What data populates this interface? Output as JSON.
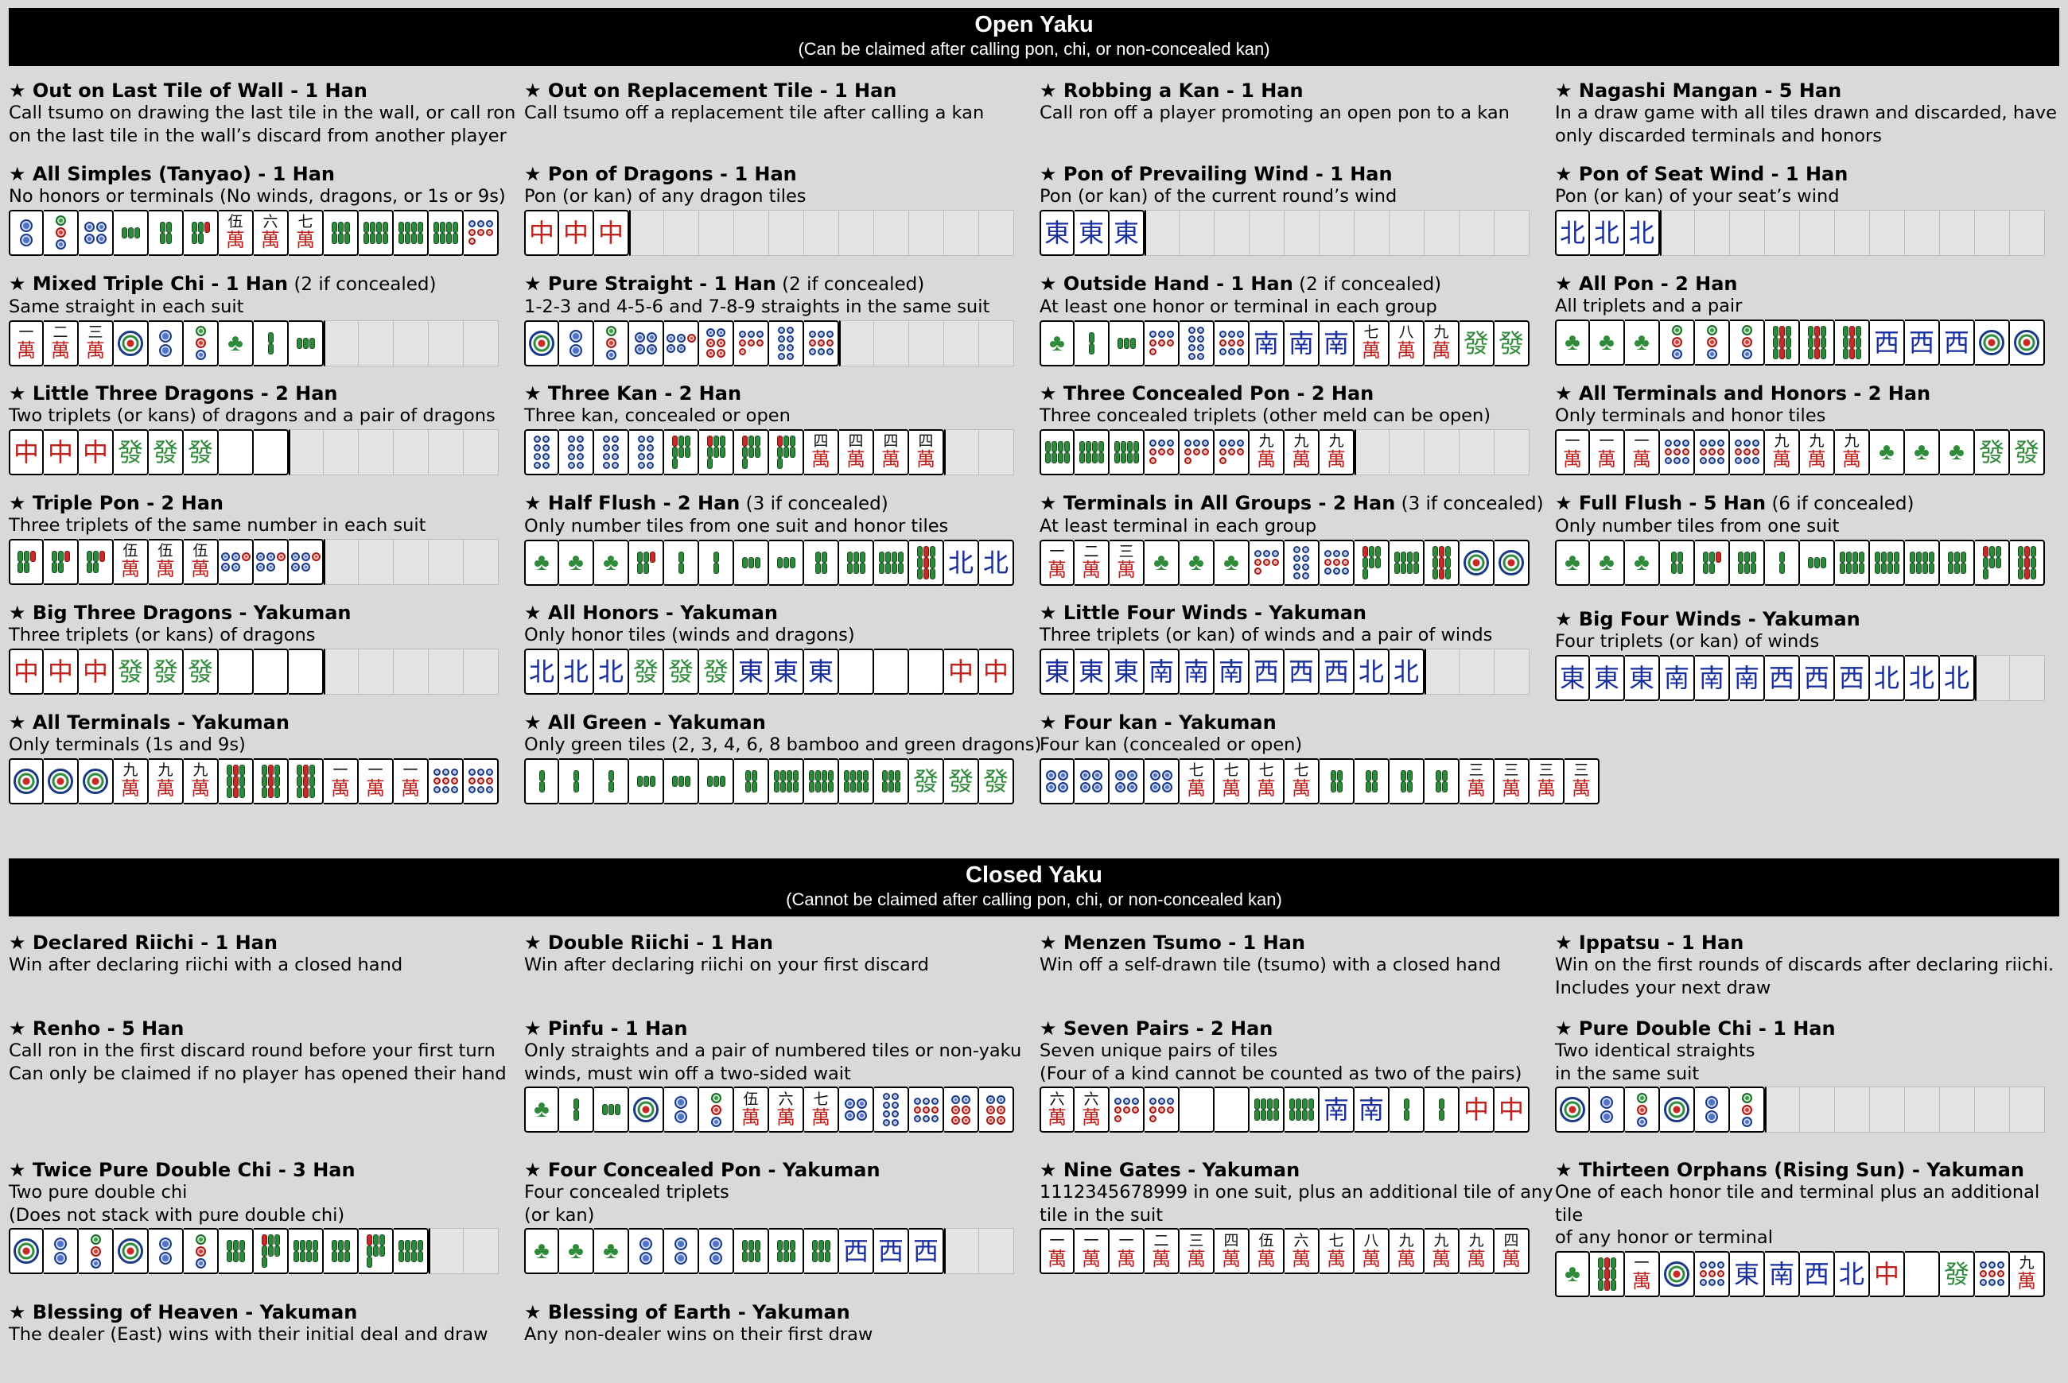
{
  "open": {
    "title": "Open Yaku",
    "subtitle": "(Can be claimed after calling pon, chi, or non-concealed kan)"
  },
  "closed": {
    "title": "Closed Yaku",
    "subtitle": "(Cannot be claimed after calling pon, chi, or non-concealed kan)"
  },
  "star": "★",
  "cards": [
    {
      "title": "Out on Last Tile of Wall - 1 Han",
      "desc": "Call tsumo on drawing the last tile in the wall, or call ron\non the last tile in the wall’s discard from another player",
      "tiles": []
    },
    {
      "title": "Out on Replacement Tile - 1 Han",
      "desc": "Call tsumo off a replacement tile after calling a kan",
      "tiles": []
    },
    {
      "title": "Robbing a Kan - 1 Han",
      "desc": "Call ron off a player promoting an open pon to a kan",
      "tiles": []
    },
    {
      "title": "Nagashi Mangan - 5 Han",
      "desc": "In a draw game with all tiles drawn and discarded, have\nonly discarded terminals and honors",
      "tiles": []
    },
    {
      "title": "All Simples (Tanyao) - 1 Han",
      "desc": "No honors or terminals (No winds, dragons, or 1s or 9s)",
      "tiles": [
        "p2",
        "p3",
        "p4",
        "s3",
        "s4",
        "s5",
        "m5",
        "m6",
        "m7",
        "s6",
        "s8",
        "s8",
        "s8",
        "p7"
      ]
    },
    {
      "title": "Pon of Dragons - 1 Han",
      "desc": "Pon (or kan) of any dragon tiles",
      "tiles": [
        "dr",
        "dr",
        "dr",
        "e",
        "e",
        "e",
        "e",
        "e",
        "e",
        "e",
        "e",
        "e",
        "e",
        "e"
      ]
    },
    {
      "title": "Pon of Prevailing Wind - 1 Han",
      "desc": "Pon (or kan) of the current round’s wind",
      "tiles": [
        "we",
        "we",
        "we",
        "e",
        "e",
        "e",
        "e",
        "e",
        "e",
        "e",
        "e",
        "e",
        "e",
        "e"
      ]
    },
    {
      "title": "Pon of Seat Wind - 1 Han",
      "desc": "Pon (or kan) of your seat’s wind",
      "tiles": [
        "wn",
        "wn",
        "wn",
        "e",
        "e",
        "e",
        "e",
        "e",
        "e",
        "e",
        "e",
        "e",
        "e",
        "e"
      ]
    },
    {
      "title": "Mixed Triple Chi - 1 Han",
      "suffix": " (2 if concealed)",
      "desc": "Same straight in each suit",
      "tiles": [
        "m1",
        "m2",
        "m3",
        "p1",
        "p2",
        "p3",
        "s1",
        "s2",
        "s3",
        "e",
        "e",
        "e",
        "e",
        "e"
      ]
    },
    {
      "title": "Pure Straight - 1 Han",
      "suffix": " (2 if concealed)",
      "desc": "1-2-3 and 4-5-6 and 7-8-9 straights in the same suit",
      "tiles": [
        "p1",
        "p2",
        "p3",
        "p4",
        "p5",
        "p6",
        "p7",
        "p8",
        "p9",
        "e",
        "e",
        "e",
        "e",
        "e"
      ]
    },
    {
      "title": "Outside Hand - 1 Han",
      "suffix": " (2 if concealed)",
      "desc": "At least one honor or terminal in each group",
      "tiles": [
        "s1",
        "s2",
        "s3",
        "p7",
        "p8",
        "p9",
        "ws",
        "ws",
        "ws",
        "m7",
        "m8",
        "m9",
        "dg",
        "dg"
      ]
    },
    {
      "title": "All Pon - 2 Han",
      "desc": "All triplets and a pair",
      "tiles": [
        "s1",
        "s1",
        "s1",
        "p3",
        "p3",
        "p3",
        "s9",
        "s9",
        "s9",
        "ww",
        "ww",
        "ww",
        "p1",
        "p1"
      ]
    },
    {
      "title": "Little Three Dragons - 2 Han",
      "desc": "Two triplets (or kans) of dragons and a pair of dragons",
      "tiles": [
        "dr",
        "dr",
        "dr",
        "dg",
        "dg",
        "dg",
        "dw",
        "dw",
        "e",
        "e",
        "e",
        "e",
        "e",
        "e"
      ]
    },
    {
      "title": "Three Kan - 2 Han",
      "desc": "Three kan, concealed or open",
      "tiles": [
        "p8",
        "p8",
        "p8",
        "p8",
        "s7",
        "s7",
        "s7",
        "s7",
        "m4",
        "m4",
        "m4",
        "m4",
        "e",
        "e"
      ]
    },
    {
      "title": "Three Concealed Pon - 2 Han",
      "desc": "Three concealed triplets (other meld can be open)",
      "tiles": [
        "s8",
        "s8",
        "s8",
        "p7",
        "p7",
        "p7",
        "m9",
        "m9",
        "m9",
        "e",
        "e",
        "e",
        "e",
        "e"
      ]
    },
    {
      "title": "All Terminals and Honors - 2 Han",
      "desc": "Only terminals and honor tiles",
      "tiles": [
        "m1",
        "m1",
        "m1",
        "p9",
        "p9",
        "p9",
        "m9",
        "m9",
        "m9",
        "s1",
        "s1",
        "s1",
        "dg",
        "dg"
      ]
    },
    {
      "title": "Triple Pon - 2 Han",
      "desc": "Three triplets of the same number in each suit",
      "tiles": [
        "s5",
        "s5",
        "s5",
        "m5",
        "m5",
        "m5",
        "p5",
        "p5",
        "p5",
        "e",
        "e",
        "e",
        "e",
        "e"
      ]
    },
    {
      "title": "Half Flush - 2 Han",
      "suffix": " (3 if concealed)",
      "desc": "Only number tiles from one suit and honor tiles",
      "tiles": [
        "s1",
        "s1",
        "s1",
        "s5",
        "s2",
        "s2",
        "s3",
        "s3",
        "s4",
        "s6",
        "s8",
        "s9",
        "wn",
        "wn"
      ]
    },
    {
      "title": "Terminals in All Groups - 2 Han",
      "suffix": " (3 if concealed)",
      "desc": "At least terminal in each group",
      "tiles": [
        "m1",
        "m2",
        "m3",
        "s1",
        "s1",
        "s1",
        "p7",
        "p8",
        "p9",
        "s7",
        "s8",
        "s9",
        "p1",
        "p1"
      ]
    },
    {
      "title": "Full Flush - 5 Han",
      "suffix": " (6 if concealed)",
      "desc": "Only number tiles from one suit",
      "tiles": [
        "s1",
        "s1",
        "s1",
        "s4",
        "s5",
        "s6",
        "s2",
        "s3",
        "s8",
        "s8",
        "s8",
        "s6",
        "s7",
        "s9"
      ]
    },
    {
      "title": "Big Three Dragons - Yakuman",
      "desc": "Three triplets (or kans) of dragons",
      "tiles": [
        "dr",
        "dr",
        "dr",
        "dg",
        "dg",
        "dg",
        "dw",
        "dw",
        "dw",
        "e",
        "e",
        "e",
        "e",
        "e"
      ]
    },
    {
      "title": "All Honors - Yakuman",
      "desc": "Only honor tiles (winds and dragons)",
      "tiles": [
        "wn",
        "wn",
        "wn",
        "dg",
        "dg",
        "dg",
        "we",
        "we",
        "we",
        "dw",
        "dw",
        "dw",
        "dr",
        "dr"
      ]
    },
    {
      "title": "Little Four Winds - Yakuman",
      "desc": "Three triplets (or kan) of winds and a pair of winds",
      "tiles": [
        "we",
        "we",
        "we",
        "ws",
        "ws",
        "ws",
        "ww",
        "ww",
        "ww",
        "wn",
        "wn",
        "e",
        "e",
        "e"
      ]
    },
    {
      "title": "Big Four Winds - Yakuman",
      "desc": "Four triplets (or kan) of winds",
      "tiles": [
        "we",
        "we",
        "we",
        "ws",
        "ws",
        "ws",
        "ww",
        "ww",
        "ww",
        "wn",
        "wn",
        "wn",
        "e",
        "e"
      ]
    },
    {
      "title": "All Terminals - Yakuman",
      "desc": "Only terminals (1s and 9s)",
      "tiles": [
        "p1",
        "p1",
        "p1",
        "m9",
        "m9",
        "m9",
        "s9",
        "s9",
        "s9",
        "m1",
        "m1",
        "m1",
        "p9",
        "p9"
      ]
    },
    {
      "title": "All Green - Yakuman",
      "desc": "Only green tiles (2, 3, 4, 6, 8 bamboo and green dragons)",
      "tiles": [
        "s2",
        "s2",
        "s2",
        "s3",
        "s3",
        "s3",
        "s4",
        "s8",
        "s8",
        "s8",
        "s6",
        "dg",
        "dg",
        "dg"
      ]
    },
    {
      "title": "Four kan - Yakuman",
      "desc": "Four kan (concealed or open)",
      "tiles": [
        "p4",
        "p4",
        "p4",
        "p4",
        "m7",
        "m7",
        "m7",
        "m7",
        "s4",
        "s4",
        "s4",
        "s4",
        "m3",
        "m3",
        "m3",
        "m3"
      ]
    },
    {
      "title": "Declared Riichi - 1 Han",
      "desc": "Win after declaring riichi with a closed hand",
      "tiles": []
    },
    {
      "title": "Double Riichi - 1 Han",
      "desc": "Win after declaring riichi on your first discard",
      "tiles": []
    },
    {
      "title": "Menzen Tsumo - 1 Han",
      "desc": "Win off a self-drawn tile (tsumo) with a closed hand",
      "tiles": []
    },
    {
      "title": "Ippatsu - 1 Han",
      "desc": "Win on the first rounds of discards after declaring riichi.\nIncludes your next draw",
      "tiles": []
    },
    {
      "title": "Renho - 5 Han",
      "desc": "Call ron in the first discard round before your first turn\nCan only be claimed if no player has opened their hand",
      "tiles": []
    },
    {
      "title": "Pinfu - 1 Han",
      "desc": "Only straights and a pair of numbered tiles or non-yaku\nwinds, must win off a two-sided wait",
      "tiles": [
        "s1",
        "s2",
        "s3",
        "p1",
        "p2",
        "p3",
        "m5",
        "m6",
        "m7",
        "p4",
        "p8",
        "p9",
        "p6",
        "p6"
      ]
    },
    {
      "title": "Seven Pairs - 2 Han",
      "desc": "Seven unique pairs of tiles\n(Four of a kind cannot be counted as two of the pairs)",
      "tiles": [
        "m6",
        "m6",
        "p7",
        "p7",
        "dw",
        "dw",
        "s8",
        "s8",
        "ws",
        "ws",
        "s2",
        "s2",
        "dr",
        "dr"
      ]
    },
    {
      "title": "Pure Double Chi - 1 Han",
      "desc": "Two identical straights\nin the same suit",
      "tiles": [
        "p1",
        "p2",
        "p3",
        "p1",
        "p2",
        "p3",
        "e",
        "e",
        "e",
        "e",
        "e",
        "e",
        "e",
        "e"
      ]
    },
    {
      "title": "Twice Pure Double Chi - 3 Han",
      "desc": "Two pure double chi\n(Does not stack with pure double chi)",
      "tiles": [
        "p1",
        "p2",
        "p3",
        "p1",
        "p2",
        "p3",
        "s6",
        "s7",
        "s8",
        "s6",
        "s7",
        "s8",
        "e",
        "e"
      ]
    },
    {
      "title": "Four Concealed Pon - Yakuman",
      "desc": "Four concealed triplets\n(or kan)",
      "tiles": [
        "s1",
        "s1",
        "s1",
        "p2",
        "p2",
        "p2",
        "s6",
        "s6",
        "s6",
        "ww",
        "ww",
        "ww",
        "e",
        "e"
      ]
    },
    {
      "title": "Nine Gates - Yakuman",
      "desc": "1112345678999 in one suit, plus an additional tile of any\ntile in the suit",
      "tiles": [
        "m1",
        "m1",
        "m1",
        "m2",
        "m3",
        "m4",
        "m5",
        "m6",
        "m7",
        "m8",
        "m9",
        "m9",
        "m9",
        "m4"
      ]
    },
    {
      "title": "Thirteen Orphans (Rising Sun) - Yakuman",
      "desc": "One of each honor tile and terminal plus an additional tile\nof any honor or terminal",
      "tiles": [
        "s1",
        "s9",
        "m1",
        "p1",
        "p9",
        "we",
        "ws",
        "ww",
        "wn",
        "dr",
        "dw",
        "dg",
        "p9",
        "m9"
      ]
    },
    {
      "title": "Blessing of Heaven - Yakuman",
      "desc": "The dealer (East) wins with their initial deal and draw",
      "tiles": []
    },
    {
      "title": "Blessing of Earth - Yakuman",
      "desc": "Any non-dealer wins on their first draw",
      "tiles": []
    }
  ]
}
